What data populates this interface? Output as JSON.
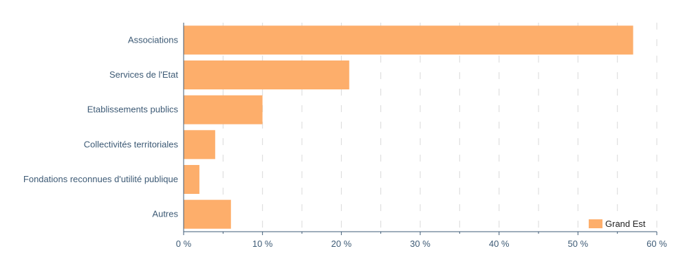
{
  "chart_data": {
    "type": "bar",
    "orientation": "horizontal",
    "categories": [
      "Associations",
      "Services de l'Etat",
      "Etablissements publics",
      "Collectivités territoriales",
      "Fondations reconnues d'utilité publique",
      "Autres"
    ],
    "series": [
      {
        "name": "Grand Est",
        "values": [
          57,
          21,
          10,
          4,
          2,
          6
        ]
      }
    ],
    "xlim": [
      0,
      60
    ],
    "x_ticks": [
      0,
      10,
      20,
      30,
      40,
      50,
      60
    ],
    "x_tick_labels": [
      "0 %",
      "10 %",
      "20 %",
      "30 %",
      "40 %",
      "50 %",
      "60 %"
    ],
    "grid": "vertical dashed",
    "legend_position": "bottom-right",
    "colors": {
      "bar": "#fdae6b",
      "axis": "#3d5a75",
      "grid": "#d9d9d9"
    }
  }
}
